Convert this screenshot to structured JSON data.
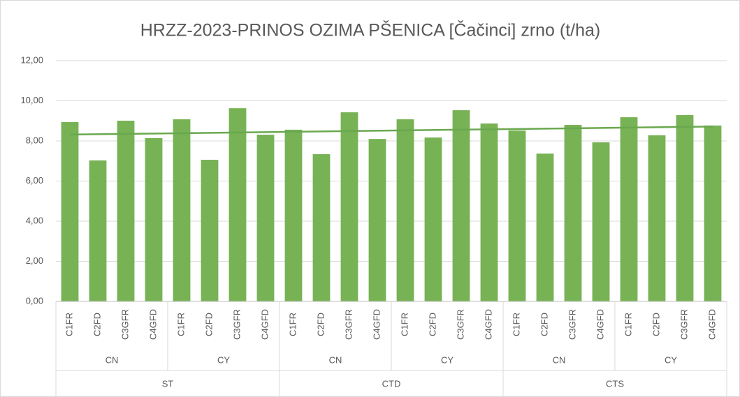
{
  "chart_data": {
    "type": "bar",
    "title": "HRZZ-2023-PRINOS OZIMA PŠENICA [Čačinci] zrno (t/ha)",
    "categories": [
      "C1FR",
      "C2FD",
      "C3GFR",
      "C4GFD",
      "C1FR",
      "C2FD",
      "C3GFR",
      "C4GFD",
      "C1FR",
      "C2FD",
      "C3GFR",
      "C4GFD",
      "C1FR",
      "C2FD",
      "C3GFR",
      "C4GFD",
      "C1FR",
      "C2FD",
      "C3GFR",
      "C4GFD",
      "C1FR",
      "C2FD",
      "C3GFR",
      "C4GFD"
    ],
    "level2": [
      "CN",
      "CY",
      "CN",
      "CY",
      "CN",
      "CY"
    ],
    "level3": [
      "ST",
      "CTD",
      "CTS"
    ],
    "values": [
      8.94,
      7.03,
      9.01,
      8.14,
      9.08,
      7.06,
      9.63,
      8.31,
      8.56,
      7.34,
      9.43,
      8.1,
      9.08,
      8.17,
      9.53,
      8.87,
      8.52,
      7.37,
      8.8,
      7.93,
      9.18,
      8.28,
      9.29,
      8.77
    ],
    "color": "#77b255",
    "trendline": true,
    "trendline_color": "#6aa84f",
    "ylim": [
      0,
      12
    ],
    "yticks": [
      {
        "value": 0,
        "label": "0,00"
      },
      {
        "value": 2,
        "label": "2,00"
      },
      {
        "value": 4,
        "label": "4,00"
      },
      {
        "value": 6,
        "label": "6,00"
      },
      {
        "value": 8,
        "label": "8,00"
      },
      {
        "value": 10,
        "label": "10,00"
      },
      {
        "value": 12,
        "label": "12,00"
      }
    ],
    "grid": true
  }
}
